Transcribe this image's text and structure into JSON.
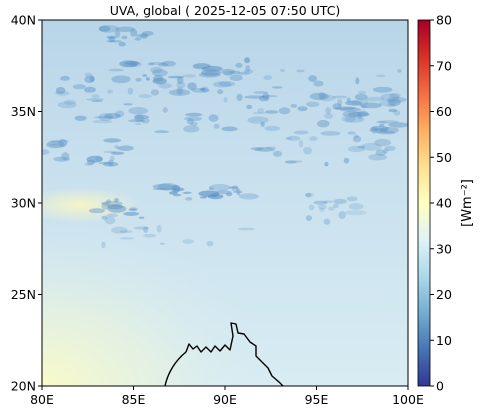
{
  "title": "UVA, global ( 2025-12-05 07:50 UTC)",
  "map": {
    "lon_range": [
      80,
      100
    ],
    "lat_range": [
      20,
      40
    ],
    "x_ticks": [
      {
        "lon": 80,
        "label": "80E"
      },
      {
        "lon": 85,
        "label": "85E"
      },
      {
        "lon": 90,
        "label": "90E"
      },
      {
        "lon": 95,
        "label": "95E"
      },
      {
        "lon": 100,
        "label": "100E"
      }
    ],
    "y_ticks": [
      {
        "lat": 20,
        "label": "20N"
      },
      {
        "lat": 25,
        "label": "25N"
      },
      {
        "lat": 30,
        "label": "30N"
      },
      {
        "lat": 35,
        "label": "35N"
      },
      {
        "lat": 40,
        "label": "40N"
      }
    ],
    "background_color": "#d6eaf2",
    "cloud_color": "#5d92c4",
    "coast_color": "#000000"
  },
  "colorbar": {
    "label": "[Wm⁻²]",
    "range": [
      0,
      80
    ],
    "ticks": [
      {
        "value": 0,
        "label": "0"
      },
      {
        "value": 10,
        "label": "10"
      },
      {
        "value": 20,
        "label": "20"
      },
      {
        "value": 30,
        "label": "30"
      },
      {
        "value": 40,
        "label": "40"
      },
      {
        "value": 50,
        "label": "50"
      },
      {
        "value": 60,
        "label": "60"
      },
      {
        "value": 70,
        "label": "70"
      },
      {
        "value": 80,
        "label": "80"
      }
    ],
    "colormap": "RdYlBu_r",
    "stops": [
      "#313695",
      "#4575b4",
      "#74add1",
      "#abd9e9",
      "#e0f3f8",
      "#ffffbf",
      "#fee090",
      "#fdae61",
      "#f46d43",
      "#d73027",
      "#a50026"
    ]
  }
}
